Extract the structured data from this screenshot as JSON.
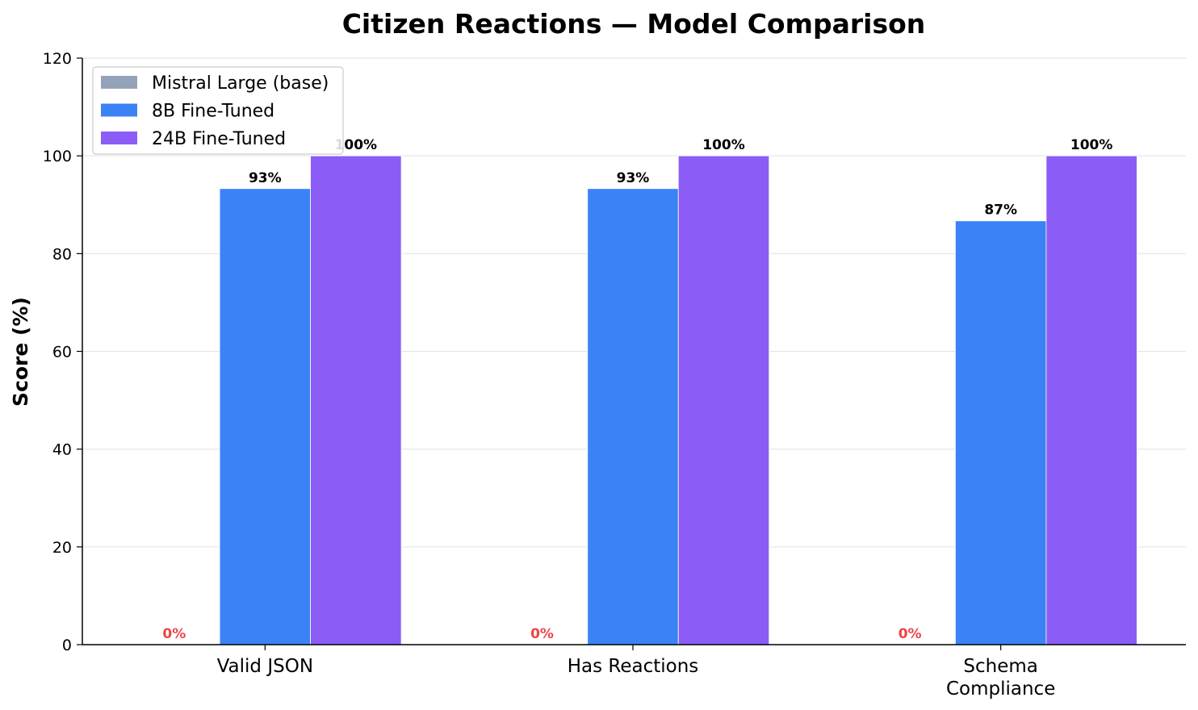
{
  "chart_data": {
    "type": "bar",
    "title": "Citizen Reactions — Model Comparison",
    "xlabel": "",
    "ylabel": "Score (%)",
    "ylim": [
      0,
      120
    ],
    "yticks": [
      0,
      20,
      40,
      60,
      80,
      100,
      120
    ],
    "grid": "horizontal",
    "legend_position": "top-left",
    "categories": [
      [
        "Valid JSON"
      ],
      [
        "Has Reactions"
      ],
      [
        "Schema",
        "Compliance"
      ]
    ],
    "series": [
      {
        "name": "Mistral Large (base)",
        "color": "#94a3b8",
        "values": [
          0,
          0,
          0
        ],
        "labels": [
          "0%",
          "0%",
          "0%"
        ],
        "label_color": "#ef4444"
      },
      {
        "name": "8B Fine-Tuned",
        "color": "#3b82f6",
        "values": [
          93.3,
          93.3,
          86.7
        ],
        "labels": [
          "93%",
          "93%",
          "87%"
        ],
        "label_color": "#000000"
      },
      {
        "name": "24B Fine-Tuned",
        "color": "#8b5cf6",
        "values": [
          100,
          100,
          100
        ],
        "labels": [
          "100%",
          "100%",
          "100%"
        ],
        "label_color": "#000000"
      }
    ]
  }
}
